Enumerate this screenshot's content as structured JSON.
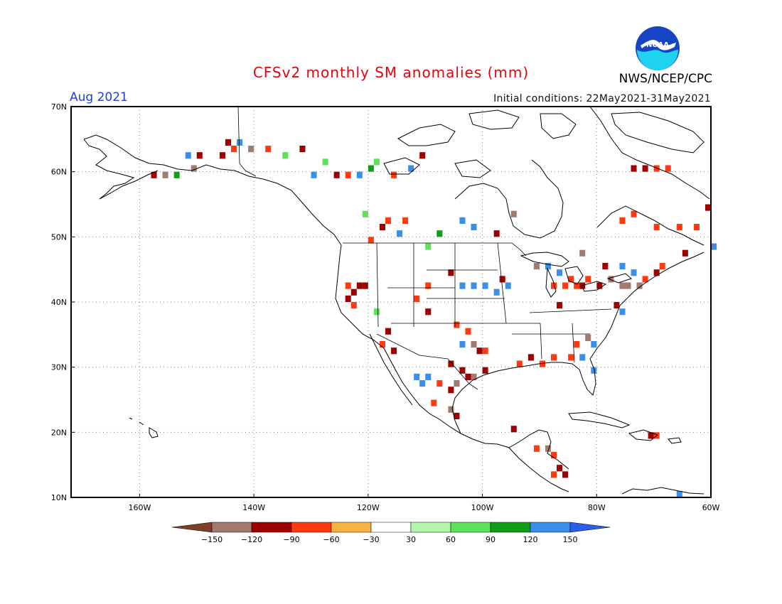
{
  "header": {
    "title": "CFSv2 monthly SM anomalies (mm)",
    "title_color": "#e8000b",
    "month": "Aug 2021",
    "month_color": "#1a3fe0",
    "initial_conditions": "Initial conditions: 22May2021-31May2021",
    "agency": "NWS/NCEP/CPC",
    "logo_text": "NOAA"
  },
  "map": {
    "lon_range": [
      -172,
      -60
    ],
    "lat_range": [
      10,
      70
    ],
    "lat_labels": [
      "70N",
      "60N",
      "50N",
      "40N",
      "30N",
      "20N",
      "10N"
    ],
    "lon_labels": [
      "160W",
      "140W",
      "120W",
      "100W",
      "80W",
      "60W"
    ],
    "anomaly_cells": [
      {
        "lon": -151,
        "lat": 60,
        "v": -140
      },
      {
        "lon": -156,
        "lat": 59,
        "v": -130
      },
      {
        "lon": -154,
        "lat": 59,
        "v": 95
      },
      {
        "lon": -158,
        "lat": 59,
        "v": -95
      },
      {
        "lon": -152,
        "lat": 62,
        "v": 125
      },
      {
        "lon": -150,
        "lat": 62,
        "v": -100
      },
      {
        "lon": -144,
        "lat": 63,
        "v": -70
      },
      {
        "lon": -145,
        "lat": 64,
        "v": -100
      },
      {
        "lon": -143,
        "lat": 64,
        "v": 130
      },
      {
        "lon": -146,
        "lat": 62,
        "v": -95
      },
      {
        "lon": -141,
        "lat": 63,
        "v": -130
      },
      {
        "lon": -138,
        "lat": 63,
        "v": -70
      },
      {
        "lon": -135,
        "lat": 62,
        "v": 80
      },
      {
        "lon": -132,
        "lat": 63,
        "v": -110
      },
      {
        "lon": -130,
        "lat": 59,
        "v": 120
      },
      {
        "lon": -126,
        "lat": 59,
        "v": -100
      },
      {
        "lon": -124,
        "lat": 59,
        "v": -70
      },
      {
        "lon": -122,
        "lat": 59,
        "v": 130
      },
      {
        "lon": -120,
        "lat": 60,
        "v": 95
      },
      {
        "lon": -116,
        "lat": 59,
        "v": -70
      },
      {
        "lon": -113,
        "lat": 60,
        "v": 130
      },
      {
        "lon": -111,
        "lat": 62,
        "v": -110
      },
      {
        "lon": -128,
        "lat": 61,
        "v": 70
      },
      {
        "lon": -119,
        "lat": 61,
        "v": 70
      },
      {
        "lon": -104,
        "lat": 52,
        "v": 125
      },
      {
        "lon": -102,
        "lat": 51,
        "v": 125
      },
      {
        "lon": -98,
        "lat": 50,
        "v": -110
      },
      {
        "lon": -95,
        "lat": 53,
        "v": -140
      },
      {
        "lon": -118,
        "lat": 51,
        "v": -100
      },
      {
        "lon": -117,
        "lat": 52,
        "v": -60
      },
      {
        "lon": -115,
        "lat": 50,
        "v": 125
      },
      {
        "lon": -114,
        "lat": 52,
        "v": -70
      },
      {
        "lon": -120,
        "lat": 49,
        "v": -70
      },
      {
        "lon": -121,
        "lat": 53,
        "v": 70
      },
      {
        "lon": -108,
        "lat": 50,
        "v": 100
      },
      {
        "lon": -110,
        "lat": 48,
        "v": 70
      },
      {
        "lon": -124,
        "lat": 42,
        "v": -70
      },
      {
        "lon": -123,
        "lat": 41,
        "v": -100
      },
      {
        "lon": -122,
        "lat": 42,
        "v": -110
      },
      {
        "lon": -121,
        "lat": 42,
        "v": -110
      },
      {
        "lon": -124,
        "lat": 40,
        "v": -100
      },
      {
        "lon": -123,
        "lat": 39,
        "v": -70
      },
      {
        "lon": -119,
        "lat": 38,
        "v": 70
      },
      {
        "lon": -117,
        "lat": 35,
        "v": -100
      },
      {
        "lon": -118,
        "lat": 33,
        "v": -70
      },
      {
        "lon": -116,
        "lat": 32,
        "v": -100
      },
      {
        "lon": -112,
        "lat": 40,
        "v": -70
      },
      {
        "lon": -110,
        "lat": 42,
        "v": -60
      },
      {
        "lon": -110,
        "lat": 38,
        "v": -100
      },
      {
        "lon": -106,
        "lat": 44,
        "v": -100
      },
      {
        "lon": -104,
        "lat": 42,
        "v": 130
      },
      {
        "lon": -102,
        "lat": 42,
        "v": 130
      },
      {
        "lon": -100,
        "lat": 42,
        "v": 130
      },
      {
        "lon": -98,
        "lat": 41,
        "v": 125
      },
      {
        "lon": -97,
        "lat": 43,
        "v": -100
      },
      {
        "lon": -96,
        "lat": 42,
        "v": 125
      },
      {
        "lon": -105,
        "lat": 36,
        "v": -70
      },
      {
        "lon": -103,
        "lat": 35,
        "v": -60
      },
      {
        "lon": -104,
        "lat": 33,
        "v": 125
      },
      {
        "lon": -102,
        "lat": 33,
        "v": -140
      },
      {
        "lon": -101,
        "lat": 32,
        "v": -110
      },
      {
        "lon": -100,
        "lat": 32,
        "v": -70
      },
      {
        "lon": -106,
        "lat": 30,
        "v": -100
      },
      {
        "lon": -104,
        "lat": 29,
        "v": -110
      },
      {
        "lon": -103,
        "lat": 28,
        "v": -100
      },
      {
        "lon": -102,
        "lat": 28,
        "v": -130
      },
      {
        "lon": -100,
        "lat": 29,
        "v": -110
      },
      {
        "lon": -105,
        "lat": 27,
        "v": -140
      },
      {
        "lon": -106,
        "lat": 26,
        "v": -110
      },
      {
        "lon": -108,
        "lat": 27,
        "v": -70
      },
      {
        "lon": -110,
        "lat": 28,
        "v": 130
      },
      {
        "lon": -112,
        "lat": 28,
        "v": 125
      },
      {
        "lon": -111,
        "lat": 27,
        "v": 125
      },
      {
        "lon": -109,
        "lat": 24,
        "v": -70
      },
      {
        "lon": -106,
        "lat": 23,
        "v": -140
      },
      {
        "lon": -105,
        "lat": 22,
        "v": -110
      },
      {
        "lon": -94,
        "lat": 30,
        "v": -70
      },
      {
        "lon": -92,
        "lat": 31,
        "v": -100
      },
      {
        "lon": -90,
        "lat": 30,
        "v": -70
      },
      {
        "lon": -88,
        "lat": 31,
        "v": -60
      },
      {
        "lon": -85,
        "lat": 31,
        "v": -70
      },
      {
        "lon": -83,
        "lat": 31,
        "v": 125
      },
      {
        "lon": -81,
        "lat": 29,
        "v": 125
      },
      {
        "lon": -81,
        "lat": 33,
        "v": 130
      },
      {
        "lon": -82,
        "lat": 34,
        "v": -140
      },
      {
        "lon": -84,
        "lat": 33,
        "v": -60
      },
      {
        "lon": -87,
        "lat": 39,
        "v": -100
      },
      {
        "lon": -86,
        "lat": 42,
        "v": -70
      },
      {
        "lon": -85,
        "lat": 43,
        "v": -60
      },
      {
        "lon": -84,
        "lat": 42,
        "v": -70
      },
      {
        "lon": -83,
        "lat": 42,
        "v": -100
      },
      {
        "lon": -82,
        "lat": 43,
        "v": -60
      },
      {
        "lon": -88,
        "lat": 42,
        "v": -60
      },
      {
        "lon": -87,
        "lat": 44,
        "v": 125
      },
      {
        "lon": -89,
        "lat": 45,
        "v": 125
      },
      {
        "lon": -91,
        "lat": 45,
        "v": -140
      },
      {
        "lon": -80,
        "lat": 42,
        "v": -110
      },
      {
        "lon": -78,
        "lat": 43,
        "v": -130
      },
      {
        "lon": -76,
        "lat": 42,
        "v": -140
      },
      {
        "lon": -75,
        "lat": 42,
        "v": -140
      },
      {
        "lon": -73,
        "lat": 42,
        "v": -140
      },
      {
        "lon": -72,
        "lat": 43,
        "v": -60
      },
      {
        "lon": -74,
        "lat": 44,
        "v": 125
      },
      {
        "lon": -70,
        "lat": 44,
        "v": -100
      },
      {
        "lon": -69,
        "lat": 45,
        "v": -60
      },
      {
        "lon": -77,
        "lat": 39,
        "v": -100
      },
      {
        "lon": -76,
        "lat": 38,
        "v": 125
      },
      {
        "lon": -83,
        "lat": 47,
        "v": -140
      },
      {
        "lon": -79,
        "lat": 45,
        "v": -100
      },
      {
        "lon": -76,
        "lat": 45,
        "v": 125
      },
      {
        "lon": -74,
        "lat": 60,
        "v": -110
      },
      {
        "lon": -72,
        "lat": 60,
        "v": -100
      },
      {
        "lon": -70,
        "lat": 60,
        "v": -70
      },
      {
        "lon": -68,
        "lat": 60,
        "v": -70
      },
      {
        "lon": -76,
        "lat": 52,
        "v": -60
      },
      {
        "lon": -74,
        "lat": 53,
        "v": -60
      },
      {
        "lon": -70,
        "lat": 51,
        "v": -60
      },
      {
        "lon": -66,
        "lat": 51,
        "v": -70
      },
      {
        "lon": -61,
        "lat": 54,
        "v": -110
      },
      {
        "lon": -63,
        "lat": 51,
        "v": -60
      },
      {
        "lon": -65,
        "lat": 47,
        "v": -100
      },
      {
        "lon": -60,
        "lat": 48,
        "v": 125
      },
      {
        "lon": -95,
        "lat": 20,
        "v": -110
      },
      {
        "lon": -91,
        "lat": 17,
        "v": -60
      },
      {
        "lon": -89,
        "lat": 17,
        "v": -140
      },
      {
        "lon": -88,
        "lat": 16,
        "v": -60
      },
      {
        "lon": -87,
        "lat": 14,
        "v": -110
      },
      {
        "lon": -86,
        "lat": 13,
        "v": -100
      },
      {
        "lon": -88,
        "lat": 13,
        "v": -60
      },
      {
        "lon": -71,
        "lat": 19,
        "v": -100
      },
      {
        "lon": -70,
        "lat": 19,
        "v": -60
      },
      {
        "lon": -66,
        "lat": 10,
        "v": 125
      }
    ]
  },
  "legend": {
    "colors": [
      "#7e3f2a",
      "#a17a70",
      "#9d0000",
      "#ff3a10",
      "#f7b443",
      "#ffffff",
      "#b2f6ac",
      "#5ee15a",
      "#119e16",
      "#3a8fe8",
      "#2c5ee8"
    ],
    "ticks": [
      "-150",
      "-120",
      "-90",
      "-60",
      "-30",
      "30",
      "60",
      "90",
      "120",
      "150"
    ]
  }
}
